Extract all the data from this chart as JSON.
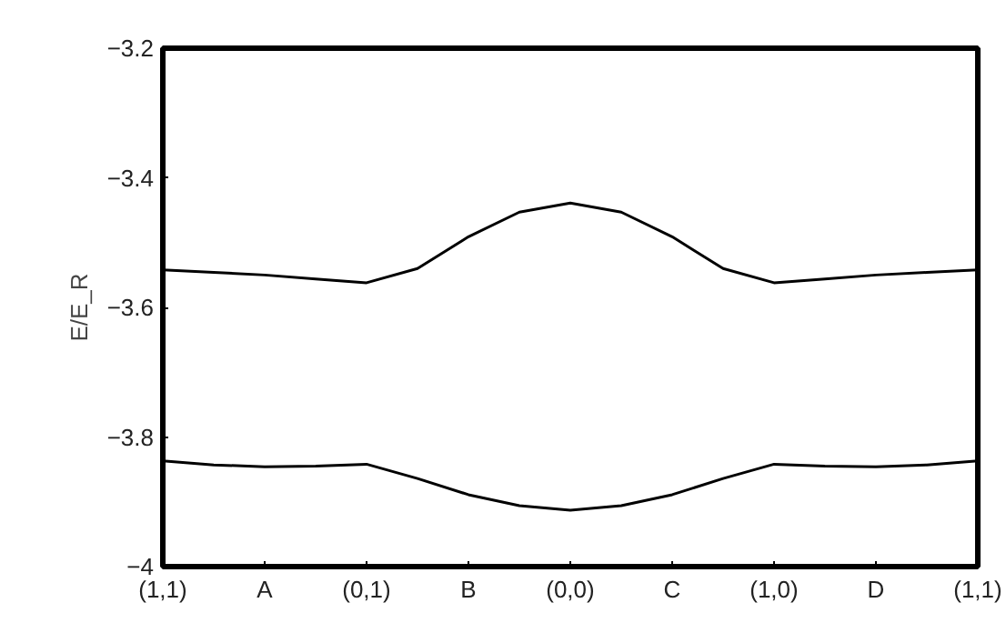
{
  "chart_data": {
    "type": "line",
    "ylabel": "E/E_R",
    "categories": [
      "(1,1)",
      null,
      "A",
      null,
      "(0,1)",
      null,
      "B",
      null,
      "(0,0)",
      null,
      "C",
      null,
      "(1,0)",
      null,
      "D",
      null,
      "(1,1)"
    ],
    "series": [
      {
        "color": "#000000",
        "values": [
          -3.542,
          -3.546,
          -3.55,
          -3.556,
          -3.562,
          -3.54,
          -3.491,
          -3.453,
          -3.439,
          -3.453,
          -3.491,
          -3.54,
          -3.562,
          -3.556,
          -3.55,
          -3.546,
          -3.542
        ]
      },
      {
        "color": "#000000",
        "values": [
          -3.837,
          -3.843,
          -3.846,
          -3.845,
          -3.842,
          -3.864,
          -3.889,
          -3.906,
          -3.913,
          -3.906,
          -3.889,
          -3.864,
          -3.842,
          -3.845,
          -3.846,
          -3.843,
          -3.837
        ]
      }
    ],
    "ylim": [
      -4,
      -3.2
    ],
    "yticks": [
      {
        "value": -4,
        "label": "−4"
      },
      {
        "value": -3.8,
        "label": "−3.8"
      },
      {
        "value": -3.6,
        "label": "−3.6"
      },
      {
        "value": -3.4,
        "label": "−3.4"
      },
      {
        "value": -3.2,
        "label": "−3.2"
      }
    ],
    "grid": false,
    "marker": "none",
    "line_style": "solid"
  }
}
